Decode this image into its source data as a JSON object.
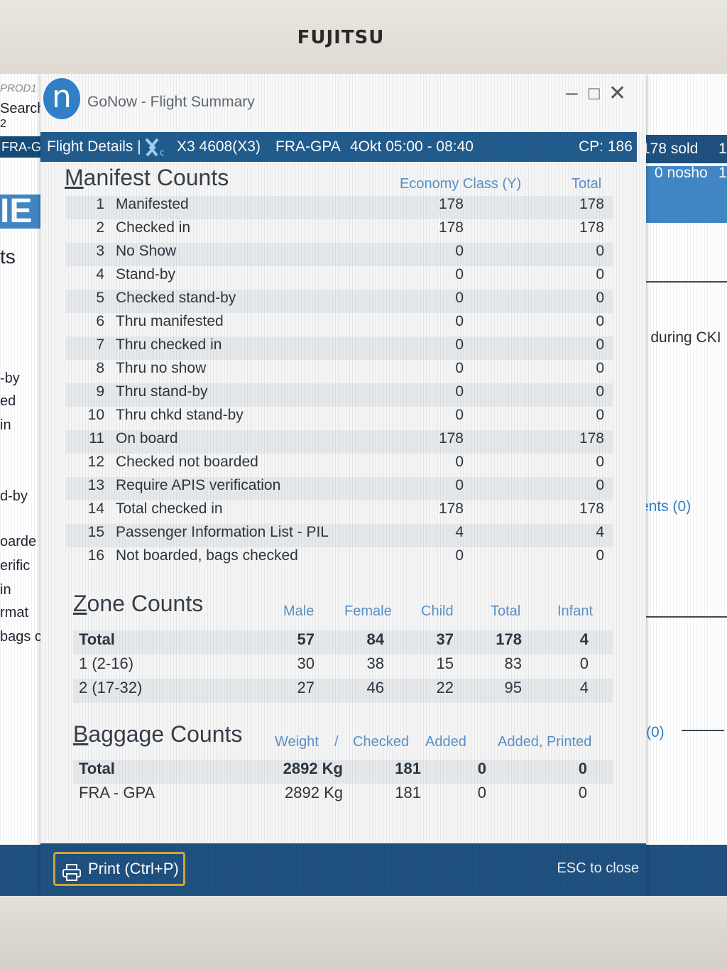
{
  "monitor": {
    "brand": "FUJITSU"
  },
  "background_left": {
    "prod": "PROD1",
    "search": "Search",
    "digit": "2",
    "route": "FRA-G",
    "big": "IE",
    "ts": "ts",
    "items": [
      "-by",
      "ed",
      "in",
      "d-by",
      "oarde",
      "erific",
      "in",
      "rmat",
      "bags c"
    ]
  },
  "background_right": {
    "sold": "178 sold",
    "sold_suffix": "1",
    "nosho": "0 nosho",
    "nosho_suffix": "1",
    "during": "s during CKI",
    "ents": "ents (0)",
    "zero": "(0)"
  },
  "window": {
    "app_title": "GoNow - Flight Summary",
    "minimize": "–",
    "maximize": "□",
    "close": "✕"
  },
  "flight": {
    "label": "Flight Details |",
    "number": "X3 4608(X3)",
    "route": "FRA-GPA",
    "time": "4Okt 05:00 - 08:40",
    "cp": "CP: 186",
    "airline_icon": "airline-logo"
  },
  "manifest": {
    "title_first": "M",
    "title_rest": "anifest Counts",
    "col_economy": "Economy Class (Y)",
    "col_total": "Total",
    "rows": [
      {
        "n": "1",
        "label": "Manifested",
        "y": "178",
        "total": "178"
      },
      {
        "n": "2",
        "label": "Checked in",
        "y": "178",
        "total": "178"
      },
      {
        "n": "3",
        "label": "No Show",
        "y": "0",
        "total": "0"
      },
      {
        "n": "4",
        "label": "Stand-by",
        "y": "0",
        "total": "0"
      },
      {
        "n": "5",
        "label": "Checked stand-by",
        "y": "0",
        "total": "0"
      },
      {
        "n": "6",
        "label": "Thru manifested",
        "y": "0",
        "total": "0"
      },
      {
        "n": "7",
        "label": "Thru checked in",
        "y": "0",
        "total": "0"
      },
      {
        "n": "8",
        "label": "Thru no show",
        "y": "0",
        "total": "0"
      },
      {
        "n": "9",
        "label": "Thru stand-by",
        "y": "0",
        "total": "0"
      },
      {
        "n": "10",
        "label": "Thru chkd stand-by",
        "y": "0",
        "total": "0"
      },
      {
        "n": "11",
        "label": "On board",
        "y": "178",
        "total": "178"
      },
      {
        "n": "12",
        "label": "Checked not boarded",
        "y": "0",
        "total": "0"
      },
      {
        "n": "13",
        "label": "Require APIS verification",
        "y": "0",
        "total": "0"
      },
      {
        "n": "14",
        "label": "Total checked in",
        "y": "178",
        "total": "178"
      },
      {
        "n": "15",
        "label": "Passenger Information List - PIL",
        "y": "4",
        "total": "4"
      },
      {
        "n": "16",
        "label": "Not boarded, bags checked",
        "y": "0",
        "total": "0"
      }
    ]
  },
  "zones": {
    "title_first": "Z",
    "title_rest": "one Counts",
    "headers": [
      "Male",
      "Female",
      "Child",
      "Total",
      "Infant"
    ],
    "rows": [
      {
        "label": "Total",
        "male": "57",
        "female": "84",
        "child": "37",
        "total": "178",
        "infant": "4"
      },
      {
        "label": "1 (2-16)",
        "male": "30",
        "female": "38",
        "child": "15",
        "total": "83",
        "infant": "0"
      },
      {
        "label": "2 (17-32)",
        "male": "27",
        "female": "46",
        "child": "22",
        "total": "95",
        "infant": "4"
      }
    ]
  },
  "baggage": {
    "title_first": "B",
    "title_rest": "aggage Counts",
    "headers": [
      "Weight",
      "/",
      "Checked",
      "Added",
      "Added, Printed"
    ],
    "rows": [
      {
        "label": "Total",
        "weight": "2892 Kg",
        "checked": "181",
        "added": "0",
        "printed": "0"
      },
      {
        "label": "FRA - GPA",
        "weight": "2892 Kg",
        "checked": "181",
        "added": "0",
        "printed": "0"
      }
    ]
  },
  "footer": {
    "print_label": "Print (Ctrl+P)",
    "esc_label": "ESC to close"
  },
  "colors": {
    "accent": "#1d4f7e",
    "header_blue": "#5790c9",
    "print_border": "#d4a531"
  }
}
